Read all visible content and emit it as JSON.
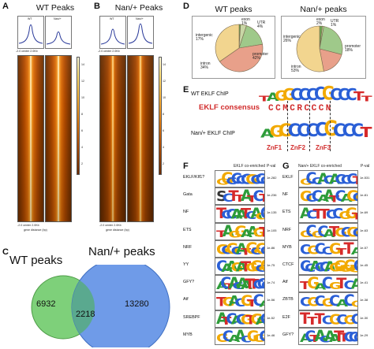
{
  "panel_A": {
    "letter": "A",
    "title": "WT Peaks",
    "profile_labels": [
      "WT",
      "Nan/+"
    ],
    "x_ticks": [
      "-2.0",
      "center",
      "2.0Kb"
    ],
    "xlabel": "gene distance (bp)",
    "colorbar_ticks": [
      "14",
      "12",
      "10",
      "8",
      "6",
      "4",
      "2"
    ]
  },
  "panel_B": {
    "letter": "B",
    "title": "Nan/+ Peaks",
    "profile_labels": [
      "WT",
      "Nan/+"
    ],
    "x_ticks": [
      "-2.0",
      "center",
      "2.0Kb"
    ],
    "xlabel": "gene distance (bp)",
    "colorbar_ticks": [
      "14",
      "12",
      "10",
      "8",
      "6",
      "4",
      "2"
    ]
  },
  "panel_C": {
    "letter": "C",
    "set_left": "WT peaks",
    "set_right": "Nan/+ peaks",
    "count_left_only": "6932",
    "count_overlap": "2218",
    "count_right_only": "13280",
    "color_left": "#7ed07a",
    "color_right": "#6f9be8"
  },
  "panel_D": {
    "letter": "D",
    "pies": [
      {
        "title": "WT peaks",
        "slices": [
          {
            "label": "exon",
            "pct": 1,
            "color": "#6aa84f"
          },
          {
            "label": "UTR",
            "pct": 4,
            "color": "#c9d7a6"
          },
          {
            "label": "intergenic",
            "pct": 17,
            "color": "#9fc98a"
          },
          {
            "label": "promoter",
            "pct": 42,
            "color": "#e8a08a"
          },
          {
            "label": "intron",
            "pct": 34,
            "color": "#f2d58f"
          }
        ],
        "labels": {
          "exon": "exon\n1%",
          "utr": "UTR\n4%",
          "intergenic": "intergenic\n17%",
          "promoter": "promoter\n42%",
          "intron": "intron\n34%"
        }
      },
      {
        "title": "Nan/+ peaks",
        "slices": [
          {
            "label": "exon",
            "pct": 2,
            "color": "#6aa84f"
          },
          {
            "label": "UTR",
            "pct": 1,
            "color": "#c9d7a6"
          },
          {
            "label": "intergenic",
            "pct": 26,
            "color": "#9fc98a"
          },
          {
            "label": "promoter",
            "pct": 18,
            "color": "#e8a08a"
          },
          {
            "label": "intron",
            "pct": 53,
            "color": "#f2d58f"
          }
        ],
        "labels": {
          "exon": "exon\n2%",
          "utr": "UTR\n1%",
          "intergenic": "intergenic\n26%",
          "promoter": "promoter\n18%",
          "intron": "intron\n53%"
        }
      }
    ]
  },
  "panel_E": {
    "letter": "E",
    "row1_label": "WT EKLF ChIP",
    "consensus_label": "EKLF consensus",
    "consensus_seq": "CCMCRCCCN",
    "row3_label": "Nan/+ EKLF ChIP",
    "znf_labels": [
      "ZnF1",
      "ZnF2",
      "ZnF3"
    ],
    "logo_top": "TAGGCCCCGCCCTT",
    "logo_bottom": "AGGCCCCGCCCT"
  },
  "panel_F": {
    "letter": "F",
    "title": "EKLF co-enriched",
    "pval_header": "P-val",
    "rows": [
      {
        "name": "EKLF/Klf1?",
        "motif": "GGCCCCGCCC",
        "pval": "1e-282"
      },
      {
        "name": "Gata",
        "motif": "SCTTATCT",
        "pval": "1e-236"
      },
      {
        "name": "NF",
        "motif": "TCCAATCAGC",
        "pval": "1e-135"
      },
      {
        "name": "ETS",
        "motif": "TAGGAAGT",
        "pval": "1e-105"
      },
      {
        "name": "NRF",
        "motif": "GCGCATGCGC",
        "pval": "1e-86"
      },
      {
        "name": "YY",
        "motif": "CAAGATGGCG",
        "pval": "1e-75"
      },
      {
        "name": "GFY?",
        "motif": "ACTACAATTCCC",
        "pval": "1e-74"
      },
      {
        "name": "Atf",
        "motif": "TGACGTCA",
        "pval": "1e-56"
      },
      {
        "name": "SREBPF",
        "motif": "ATCACGTGAC",
        "pval": "1e-52"
      },
      {
        "name": "MYB",
        "motif": "GCAACGGC",
        "pval": "1e-46"
      }
    ]
  },
  "panel_G": {
    "letter": "G",
    "title": "Nan/+ EKLF co-enriched",
    "pval_header": "P-val",
    "rows": [
      {
        "name": "EKLF",
        "motif": "GCCACACCCT",
        "pval": "1e-531"
      },
      {
        "name": "NF",
        "motif": "GCCAATCAGC",
        "pval": "1e-81"
      },
      {
        "name": "ETS",
        "motif": "ACTTCCGGT",
        "pval": "1e-69"
      },
      {
        "name": "NRF",
        "motif": "GCGCATGCGC",
        "pval": "1e-63"
      },
      {
        "name": "MYB",
        "motif": "CGCCGTTA",
        "pval": "1e-57"
      },
      {
        "name": "CTCF",
        "motif": "CCACCAGGGGGC",
        "pval": "1e-45"
      },
      {
        "name": "Atf",
        "motif": "TGACGTCA",
        "pval": "1e-41"
      },
      {
        "name": "ZBTB",
        "motif": "CGCGCACG",
        "pval": "1e-38"
      },
      {
        "name": "E2F",
        "motif": "TTTCGCGC",
        "pval": "1e-30"
      },
      {
        "name": "GFY?",
        "motif": "ACTACAATTCCC",
        "pval": "1e-29"
      }
    ]
  },
  "colors": {
    "A": "#2e9c3a",
    "C": "#2a5fd6",
    "G": "#f2a900",
    "T": "#d62a2a",
    "consensus": "#d12b2b",
    "znf": "#d12b2b",
    "profile_line": "#2a3a9a"
  }
}
